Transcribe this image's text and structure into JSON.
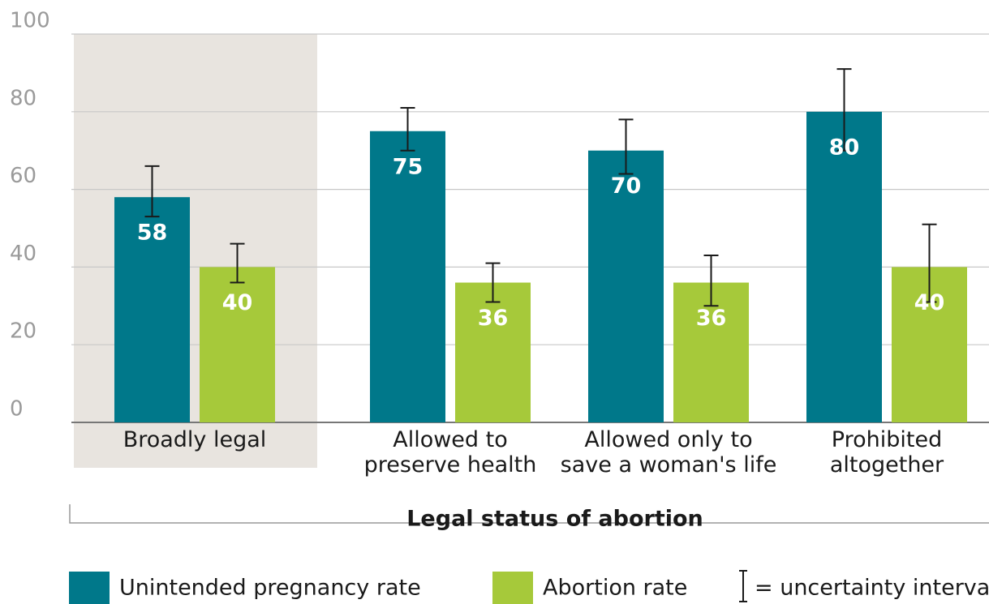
{
  "chart_data": {
    "type": "bar",
    "categories": [
      "Broadly legal",
      "Allowed to\npreserve health",
      "Allowed only to\nsave a woman's life",
      "Prohibited\naltogether"
    ],
    "series": [
      {
        "name": "Unintended pregnancy rate",
        "color": "#00788a",
        "values": [
          58,
          75,
          70,
          80
        ],
        "error_low": [
          53,
          70,
          64,
          70
        ],
        "error_high": [
          66,
          81,
          78,
          91
        ]
      },
      {
        "name": "Abortion rate",
        "color": "#a6c93a",
        "values": [
          40,
          36,
          36,
          40
        ],
        "error_low": [
          36,
          31,
          30,
          31
        ],
        "error_high": [
          46,
          41,
          43,
          51
        ]
      }
    ],
    "x_label": "Legal status of abortion",
    "error_legend": "= uncertainty interva",
    "ylim": [
      0,
      100
    ],
    "yticks": [
      0,
      20,
      40,
      60,
      80,
      100
    ],
    "grid": true,
    "highlighted_category": "Broadly legal",
    "highlight_color": "#e8e4df",
    "legend": "bottom"
  }
}
